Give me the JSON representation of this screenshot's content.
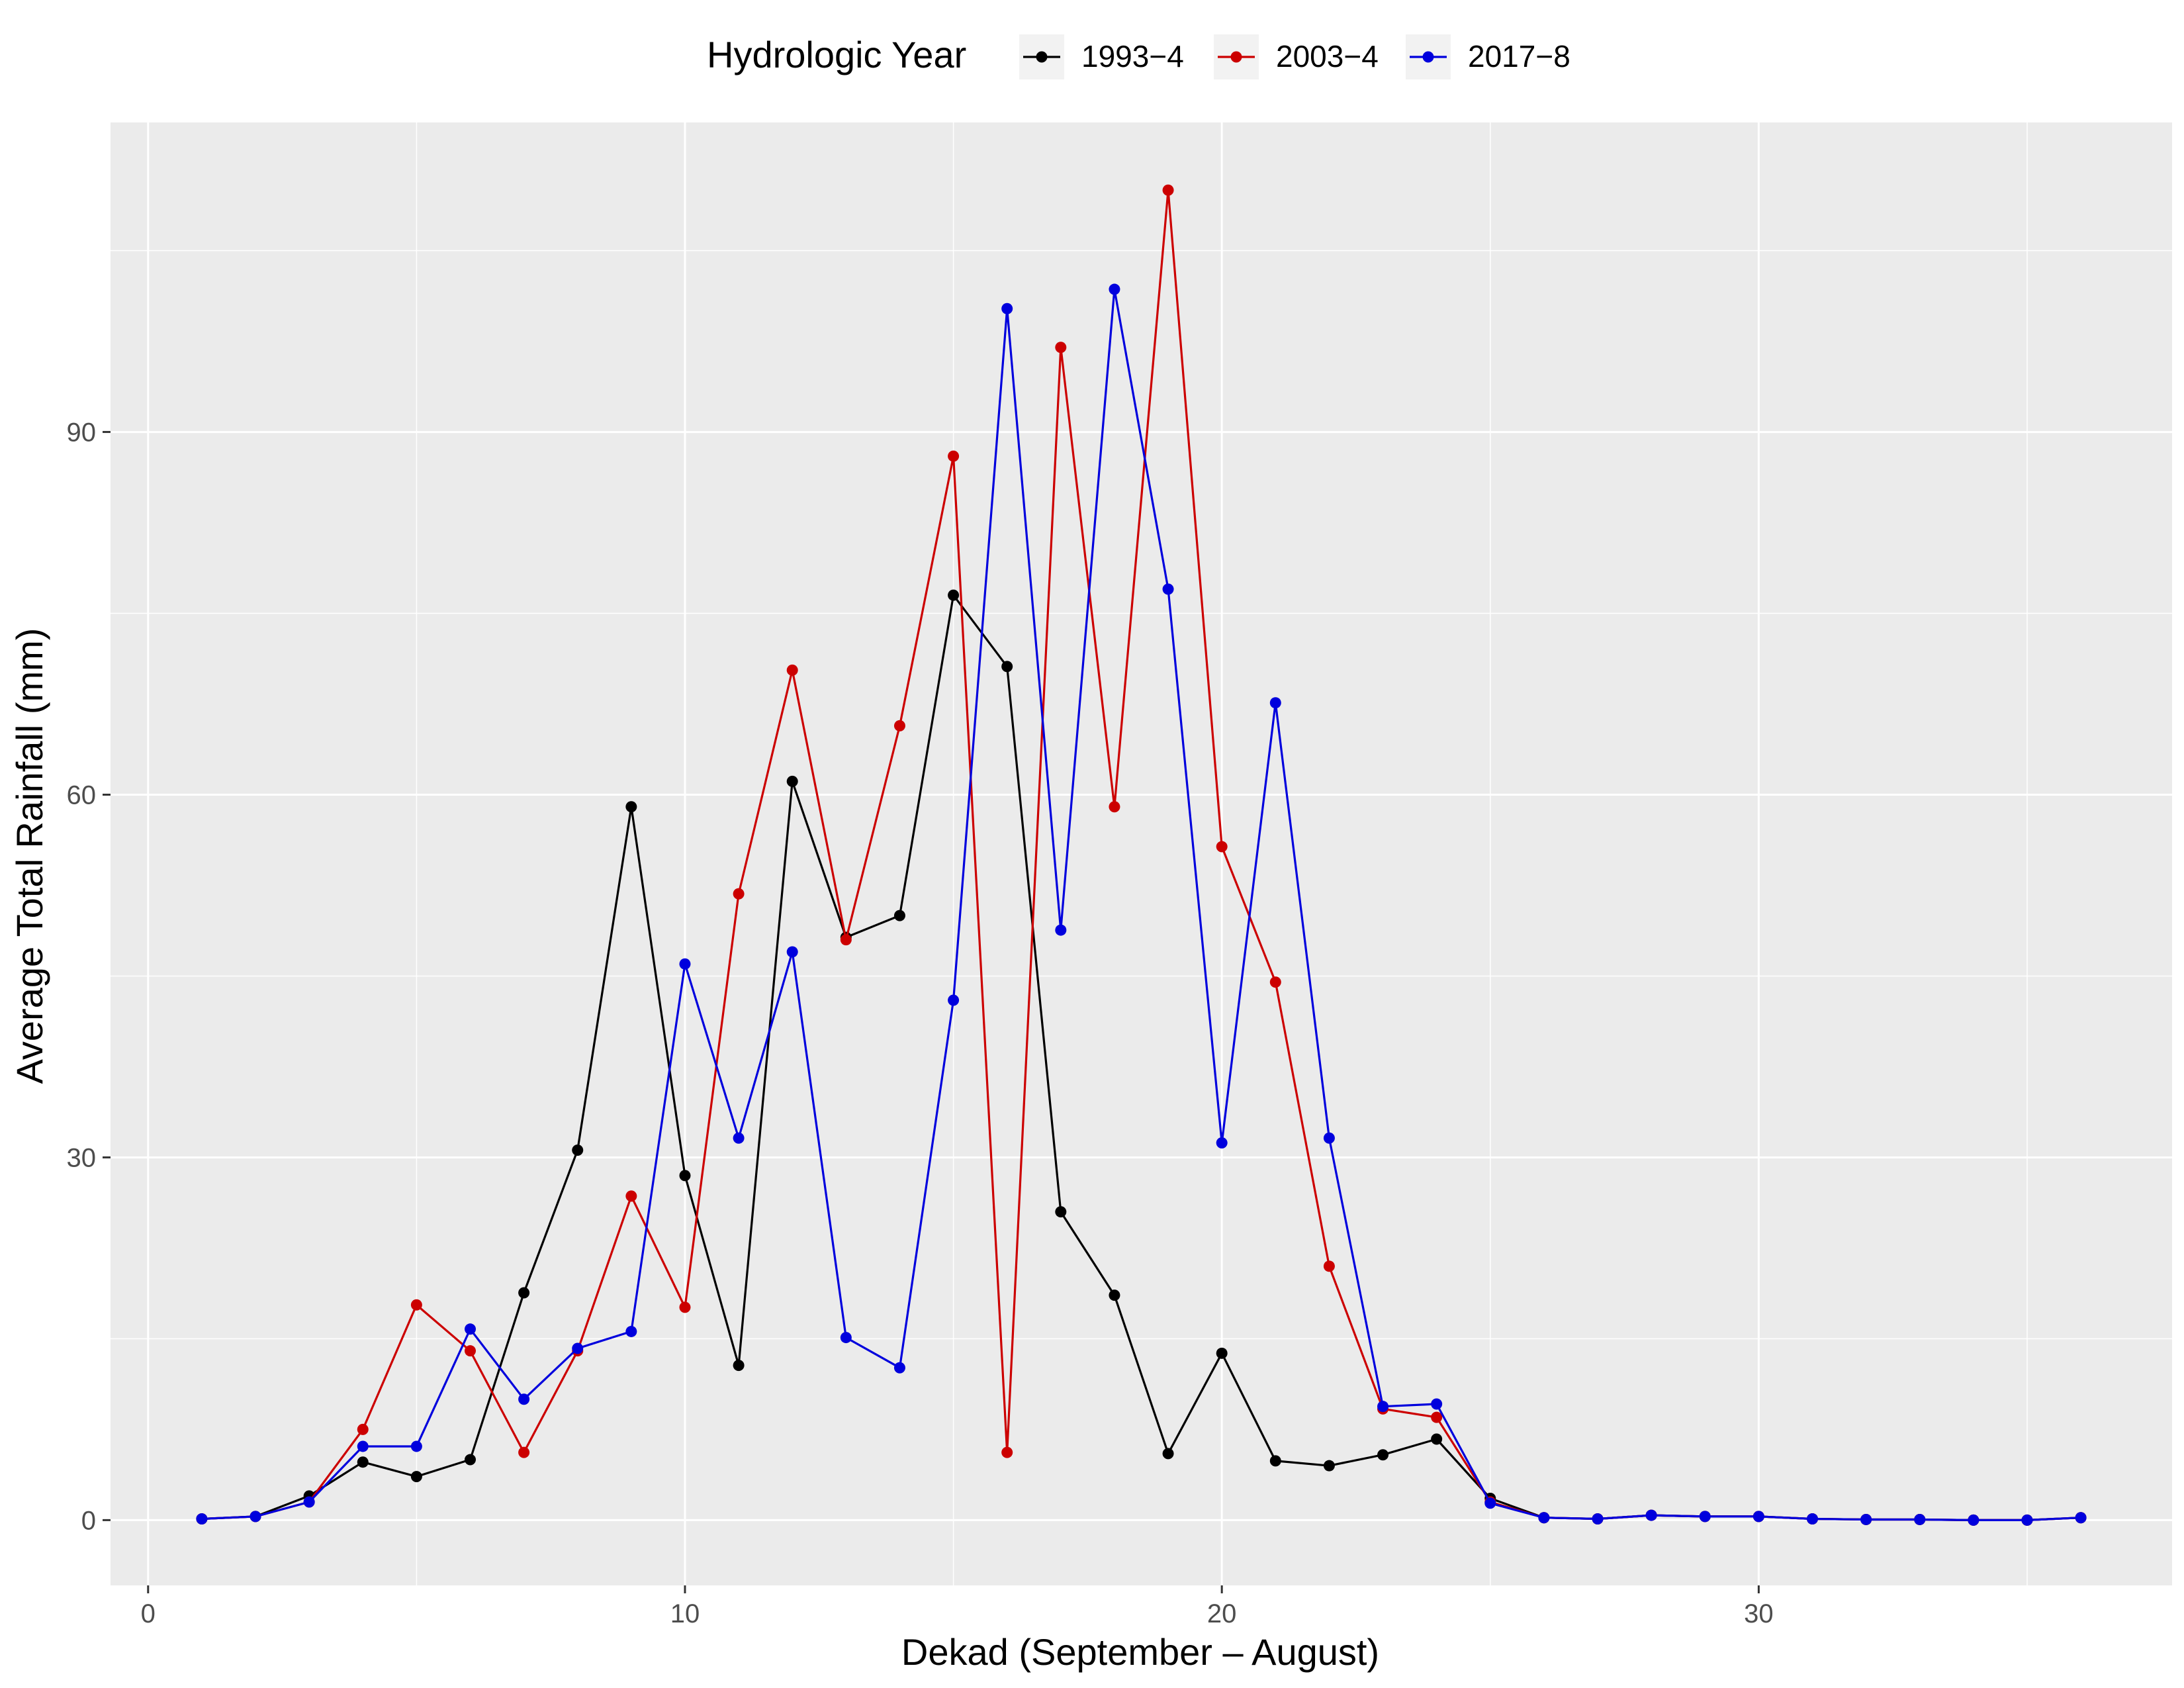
{
  "chart_data": {
    "type": "line",
    "xlabel": "Dekad (September – August)",
    "ylabel": "Average Total Rainfall (mm)",
    "xlim": [
      -0.7,
      37.7
    ],
    "ylim": [
      -5.4,
      115.6
    ],
    "xticks": [
      0,
      10,
      20,
      30
    ],
    "yticks": [
      0,
      30,
      60,
      90
    ],
    "x_minor": [
      5,
      15,
      25,
      35
    ],
    "y_minor": [
      15,
      45,
      75,
      105
    ],
    "grid": true,
    "panel_color": "#ebebeb",
    "legend": {
      "title": "Hydrologic Year",
      "position": "top"
    },
    "x": [
      1,
      2,
      3,
      4,
      5,
      6,
      7,
      8,
      9,
      10,
      11,
      12,
      13,
      14,
      15,
      16,
      17,
      18,
      19,
      20,
      21,
      22,
      23,
      24,
      25,
      26,
      27,
      28,
      29,
      30,
      31,
      32,
      33,
      34,
      35,
      36
    ],
    "series": [
      {
        "name": "1993−4",
        "color": "#000000",
        "values": [
          0.1,
          0.3,
          2.0,
          4.8,
          3.6,
          5.0,
          18.8,
          30.6,
          59.0,
          28.5,
          12.8,
          61.1,
          48.2,
          50.0,
          76.5,
          70.6,
          25.5,
          18.6,
          5.5,
          13.8,
          4.9,
          4.5,
          5.4,
          6.7,
          1.8,
          0.2,
          0.1,
          0.4,
          0.3,
          0.3,
          0.1,
          0.05,
          0.05,
          0.0,
          0.0,
          0.2
        ]
      },
      {
        "name": "2003−4",
        "color": "#cc0000",
        "values": [
          0.1,
          0.3,
          1.5,
          7.5,
          17.8,
          14.0,
          5.6,
          14.0,
          26.8,
          17.6,
          51.8,
          70.3,
          48.0,
          65.7,
          88.0,
          5.6,
          97.0,
          59.0,
          110.0,
          55.7,
          44.5,
          21.0,
          9.2,
          8.5,
          1.5,
          0.2,
          0.1,
          0.4,
          0.3,
          0.3,
          0.1,
          0.05,
          0.05,
          0.0,
          0.0,
          0.2
        ]
      },
      {
        "name": "2017−8",
        "color": "#0000dd",
        "values": [
          0.1,
          0.3,
          1.5,
          6.1,
          6.1,
          15.8,
          10.0,
          14.2,
          15.6,
          46.0,
          31.6,
          47.0,
          15.1,
          12.6,
          43.0,
          100.2,
          48.8,
          101.8,
          77.0,
          31.2,
          67.6,
          31.6,
          9.4,
          9.6,
          1.4,
          0.2,
          0.1,
          0.4,
          0.3,
          0.3,
          0.1,
          0.05,
          0.05,
          0.0,
          0.0,
          0.2
        ]
      }
    ]
  }
}
